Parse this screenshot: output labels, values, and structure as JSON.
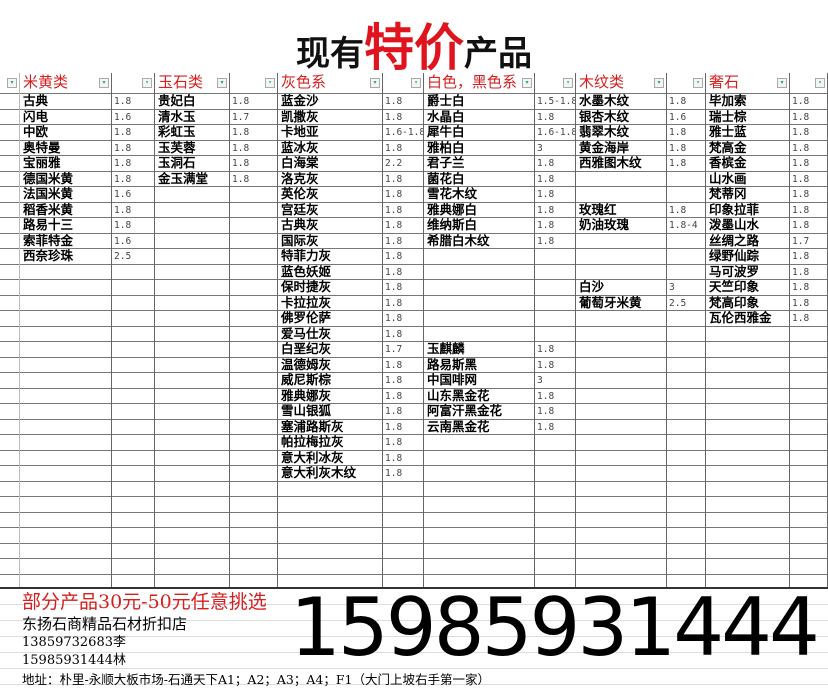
{
  "title": {
    "part1": "现有",
    "highlight": "特价",
    "part2": "产品"
  },
  "colors": {
    "accent": "#e0141e"
  },
  "columns": [
    {
      "header": "米黄类",
      "items": [
        [
          "古典",
          "1.8"
        ],
        [
          "闪电",
          "1.6"
        ],
        [
          "中欧",
          "1.8"
        ],
        [
          "奥特曼",
          "1.8"
        ],
        [
          "宝丽雅",
          "1.8"
        ],
        [
          "德国米黄",
          "1.8"
        ],
        [
          "法国米黄",
          "1.6"
        ],
        [
          "稻香米黄",
          "1.8"
        ],
        [
          "路易十三",
          "1.8"
        ],
        [
          "索菲特金",
          "1.6"
        ],
        [
          "西奈珍珠",
          "2.5"
        ]
      ]
    },
    {
      "header": "玉石类",
      "items": [
        [
          "贵妃白",
          "1.8"
        ],
        [
          "清水玉",
          "1.7"
        ],
        [
          "彩虹玉",
          "1.8"
        ],
        [
          "玉芙蓉",
          "1.8"
        ],
        [
          "玉洞石",
          "1.8"
        ],
        [
          "金玉满堂",
          "1.8"
        ]
      ]
    },
    {
      "header": "灰色系",
      "items": [
        [
          "蓝金沙",
          "1.8"
        ],
        [
          "凯撒灰",
          "1.8"
        ],
        [
          "卡地亚",
          "1.6-1.8"
        ],
        [
          "蓝冰灰",
          "1.8"
        ],
        [
          "白海棠",
          "2.2"
        ],
        [
          "洛克灰",
          "1.8"
        ],
        [
          "英伦灰",
          "1.8"
        ],
        [
          "宫廷灰",
          "1.8"
        ],
        [
          "古典灰",
          "1.8"
        ],
        [
          "国际灰",
          "1.8"
        ],
        [
          "特菲力灰",
          "1.8"
        ],
        [
          "蓝色妖姬",
          "1.8"
        ],
        [
          "保时捷灰",
          "1.8"
        ],
        [
          "卡拉拉灰",
          "1.8"
        ],
        [
          "佛罗伦萨",
          "1.8"
        ],
        [
          "爱马仕灰",
          "1.8"
        ],
        [
          "白垩纪灰",
          "1.7"
        ],
        [
          "温德姆灰",
          "1.8"
        ],
        [
          "威尼斯棕",
          "1.8"
        ],
        [
          "雅典娜灰",
          "1.8"
        ],
        [
          "雪山银狐",
          "1.8"
        ],
        [
          "塞浦路斯灰",
          "1.8"
        ],
        [
          "帕拉梅拉灰",
          "1.8"
        ],
        [
          "意大利冰灰",
          "1.8"
        ],
        [
          "意大利灰木纹",
          "1.8"
        ]
      ]
    },
    {
      "header": "白色，黑色系",
      "items": [
        [
          "爵士白",
          "1.5-1.8"
        ],
        [
          "水晶白",
          "1.8"
        ],
        [
          "犀牛白",
          "1.6-1.8"
        ],
        [
          "雅柏白",
          "3"
        ],
        [
          "君子兰",
          "1.8"
        ],
        [
          "菌花白",
          "1.8"
        ],
        [
          "雪花木纹",
          "1.8"
        ],
        [
          "雅典娜白",
          "1.8"
        ],
        [
          "维纳斯白",
          "1.8"
        ],
        [
          "希腊白木纹",
          "1.8"
        ],
        [
          "",
          ""
        ],
        [
          "",
          ""
        ],
        [
          "",
          ""
        ],
        [
          "",
          ""
        ],
        [
          "",
          ""
        ],
        [
          "",
          ""
        ],
        [
          "玉麒麟",
          "1.8"
        ],
        [
          "路易斯黑",
          "1.8"
        ],
        [
          "中国啡网",
          "3"
        ],
        [
          "山东黑金花",
          "1.8"
        ],
        [
          "阿富汗黑金花",
          "1.8"
        ],
        [
          "云南黑金花",
          "1.8"
        ]
      ]
    },
    {
      "header": "木纹类",
      "items": [
        [
          "水墨木纹",
          "1.8"
        ],
        [
          "银杏木纹",
          "1.6"
        ],
        [
          "翡翠木纹",
          "1.8"
        ],
        [
          "黄金海岸",
          "1.8"
        ],
        [
          "西雅图木纹",
          "1.8"
        ],
        [
          "",
          ""
        ],
        [
          "",
          ""
        ],
        [
          "玫瑰红",
          "1.8"
        ],
        [
          "奶油玫瑰",
          "1.8-4"
        ],
        [
          "",
          ""
        ],
        [
          "",
          ""
        ],
        [
          "",
          ""
        ],
        [
          "白沙",
          "3"
        ],
        [
          "葡萄牙米黄",
          "2.5"
        ]
      ]
    },
    {
      "header": "奢石",
      "items": [
        [
          "毕加索",
          "1.8"
        ],
        [
          "瑞士棕",
          "1.8"
        ],
        [
          "雅士蓝",
          "1.8"
        ],
        [
          "梵高金",
          "1.8"
        ],
        [
          "香槟金",
          "1.8"
        ],
        [
          "山水画",
          "1.8"
        ],
        [
          "梵蒂冈",
          "1.8"
        ],
        [
          "印象拉菲",
          "1.8"
        ],
        [
          "泼墨山水",
          "1.8"
        ],
        [
          "丝绸之路",
          "1.7"
        ],
        [
          "绿野仙踪",
          "1.8"
        ],
        [
          "马可波罗",
          "1.8"
        ],
        [
          "天竺印象",
          "1.8"
        ],
        [
          "梵高印象",
          "1.8"
        ],
        [
          "瓦伦西雅金",
          "1.8"
        ]
      ]
    }
  ],
  "footer": {
    "promo": "部分产品30元-50元任意挑选",
    "shop": "东扬石商精品石材折扣店",
    "phone1": "13859732683李",
    "phone2": "15985931444林",
    "big_phone": "15985931444",
    "address": "地址：朴里-永顺大板市场-石通天下A1；A2；A3；A4；F1（大门上坡右手第一家）"
  }
}
